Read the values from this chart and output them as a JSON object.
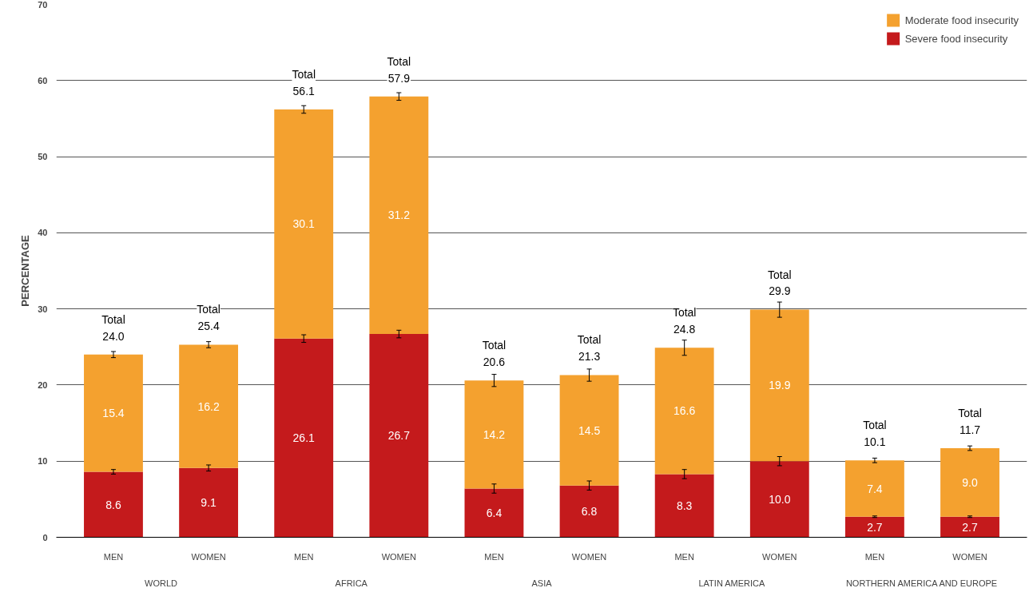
{
  "chart_data": {
    "type": "bar",
    "stacked": true,
    "ylabel": "PERCENTAGE",
    "categories": [
      "MEN",
      "WOMEN",
      "MEN",
      "WOMEN",
      "MEN",
      "WOMEN",
      "MEN",
      "WOMEN",
      "MEN",
      "WOMEN"
    ],
    "annotations": [
      "WORLD",
      "AFRICA",
      "ASIA",
      "LATIN AMERICA",
      "NORTHERN AMERICA AND EUROPE"
    ],
    "series": [
      {
        "name": "Severe food insecurity",
        "color": "#c41a1c",
        "values": [
          8.6,
          9.1,
          26.1,
          26.7,
          6.4,
          6.8,
          8.3,
          10.0,
          2.7,
          2.7
        ],
        "value_labels": [
          "8.6",
          "9.1",
          "26.1",
          "26.7",
          "6.4",
          "6.8",
          "8.3",
          "10.0",
          "2.7",
          "2.7"
        ],
        "errors": [
          0.3,
          0.4,
          0.5,
          0.5,
          0.6,
          0.6,
          0.6,
          0.6,
          0.1,
          0.1
        ]
      },
      {
        "name": "Moderate food insecurity",
        "color": "#f4a12f",
        "values": [
          15.4,
          16.2,
          30.1,
          31.2,
          14.2,
          14.5,
          16.6,
          19.9,
          7.4,
          9.0
        ],
        "value_labels": [
          "15.4",
          "16.2",
          "30.1",
          "31.2",
          "14.2",
          "14.5",
          "16.6",
          "19.9",
          "7.4",
          "9.0"
        ],
        "errors": [
          0.4,
          0.4,
          0.5,
          0.5,
          0.8,
          0.8,
          1.0,
          1.0,
          0.3,
          0.3
        ]
      }
    ],
    "totals": [
      "Total\n24.0",
      "Total\n25.4",
      "Total\n56.1",
      "Total\n57.9",
      "Total\n20.6",
      "Total\n21.3",
      "Total\n24.8",
      "Total\n29.9",
      "Total\n10.1",
      "Total\n11.7"
    ],
    "ylim": [
      0,
      70
    ],
    "yticks": [
      0,
      10,
      20,
      30,
      40,
      50,
      60,
      70
    ],
    "grid": "y",
    "legend": "top right"
  }
}
